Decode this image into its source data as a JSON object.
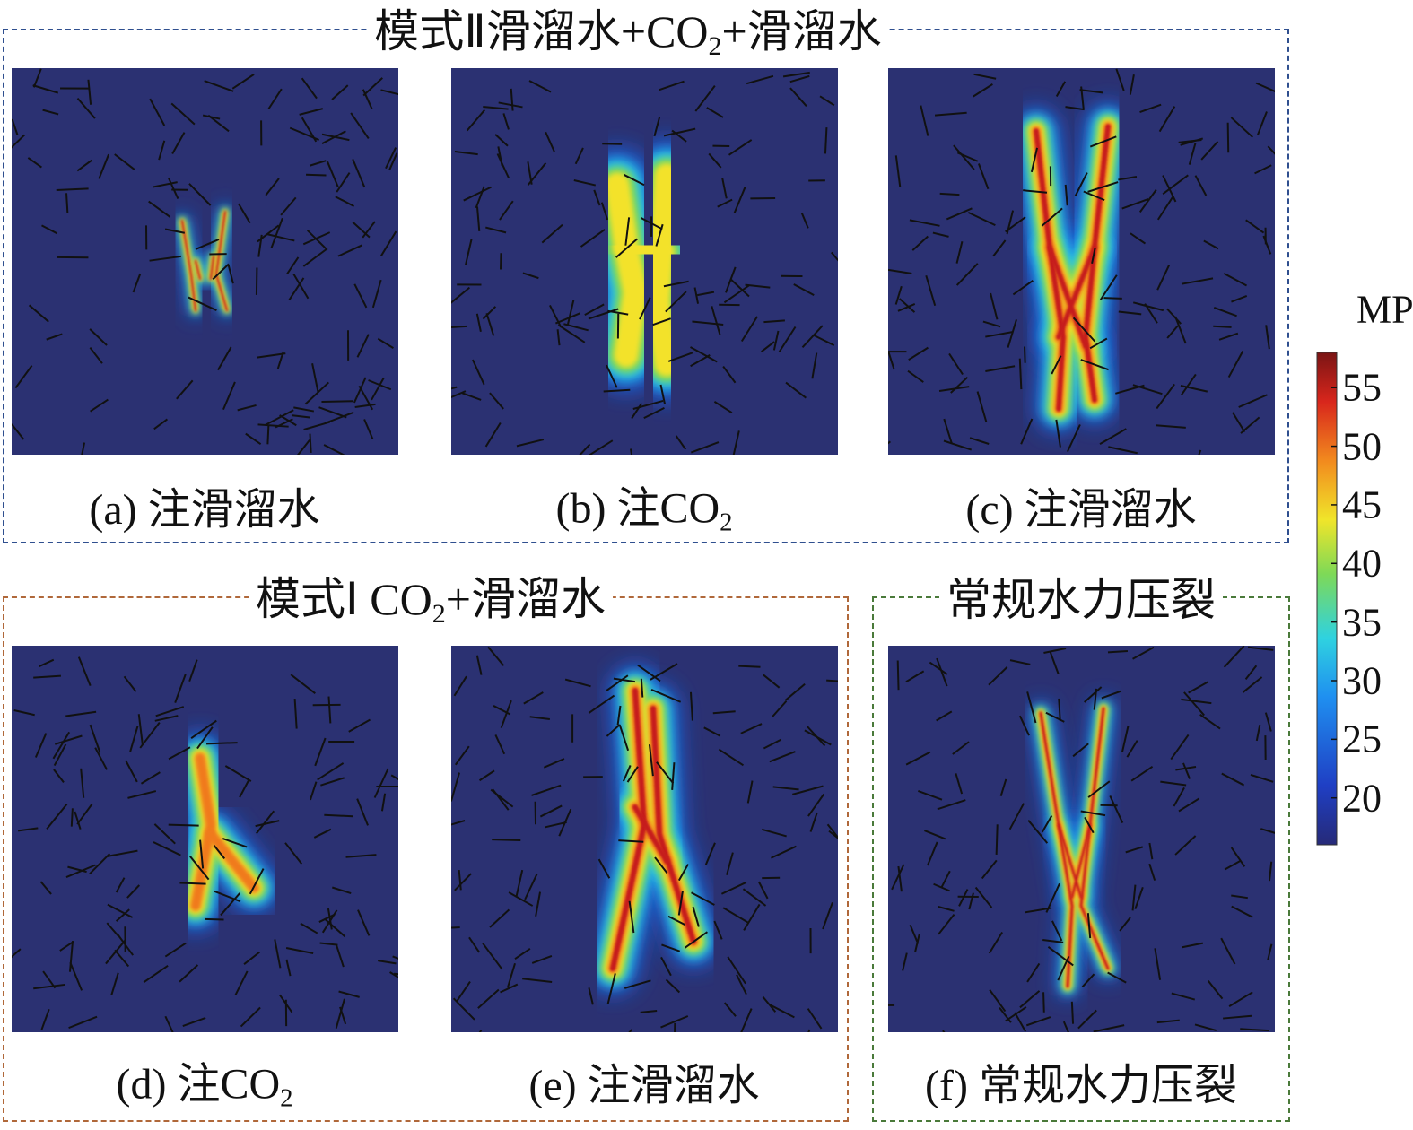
{
  "groups": [
    {
      "title": {
        "text": "模式Ⅱ滑溜水+CO",
        "subscript": "2",
        "tail": "+滑溜水"
      },
      "panels": [
        {
          "caption": "(a) 注滑溜水"
        },
        {
          "caption": {
            "text": "(b) 注CO",
            "subscript": "2",
            "tail": ""
          }
        },
        {
          "caption": "(c) 注滑溜水"
        }
      ]
    },
    {
      "title": {
        "text": "模式Ⅰ CO",
        "subscript": "2",
        "tail": "+滑溜水"
      },
      "panels": [
        {
          "caption": {
            "text": "(d) 注CO",
            "subscript": "2",
            "tail": ""
          }
        },
        {
          "caption": "(e) 注滑溜水"
        }
      ]
    },
    {
      "title": "常规水力压裂",
      "panels": [
        {
          "caption": "(f) 常规水力压裂"
        }
      ]
    }
  ],
  "colorbar": {
    "unit": "MPa",
    "lim": [
      16,
      58
    ],
    "ticks": [
      20,
      25,
      30,
      35,
      40,
      45,
      50,
      55
    ]
  }
}
